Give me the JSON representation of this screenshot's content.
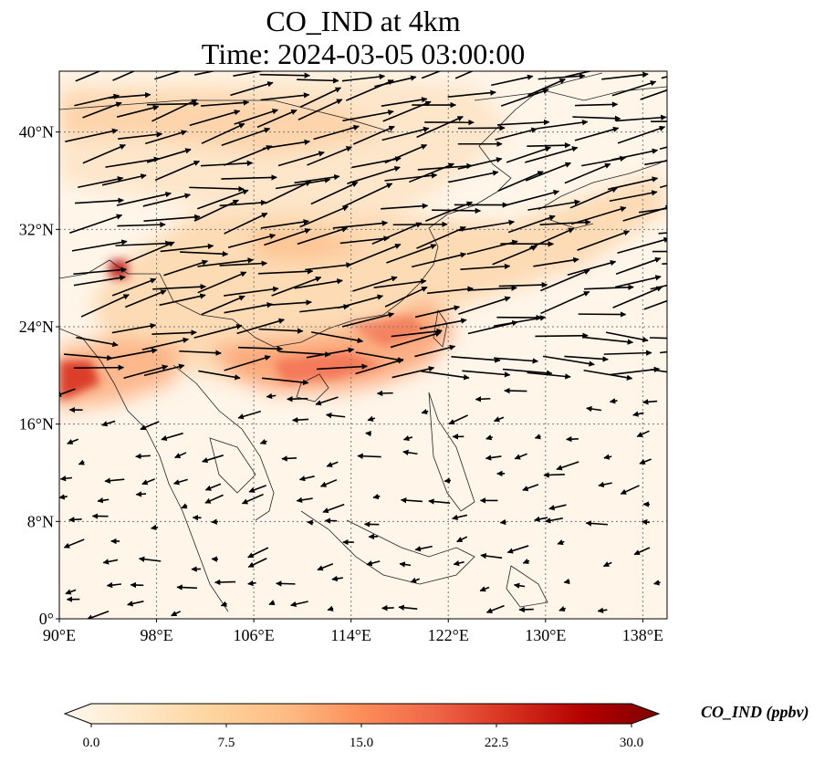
{
  "title": {
    "line1": "CO_IND at 4km",
    "line2": "Time: 2024-03-05 03:00:00"
  },
  "map": {
    "lon_range": [
      90,
      140
    ],
    "lat_range": [
      0,
      45
    ],
    "x_ticks": [
      "90°E",
      "98°E",
      "106°E",
      "114°E",
      "122°E",
      "130°E",
      "138°E"
    ],
    "y_ticks": [
      "0°",
      "8°N",
      "16°N",
      "24°N",
      "32°N",
      "40°N"
    ],
    "gridlines": true,
    "overlay": "wind vectors"
  },
  "colorbar": {
    "label": "CO_IND (ppbv)",
    "ticks": [
      "0.0",
      "7.5",
      "15.0",
      "22.5",
      "30.0"
    ],
    "range": [
      0,
      30
    ],
    "colormap": "OrRd",
    "colors": [
      "#fff7ec",
      "#fee8c8",
      "#fdd49e",
      "#fdbb84",
      "#fc8d59",
      "#ef6548",
      "#d7301f",
      "#b30000",
      "#7f0000"
    ]
  }
}
